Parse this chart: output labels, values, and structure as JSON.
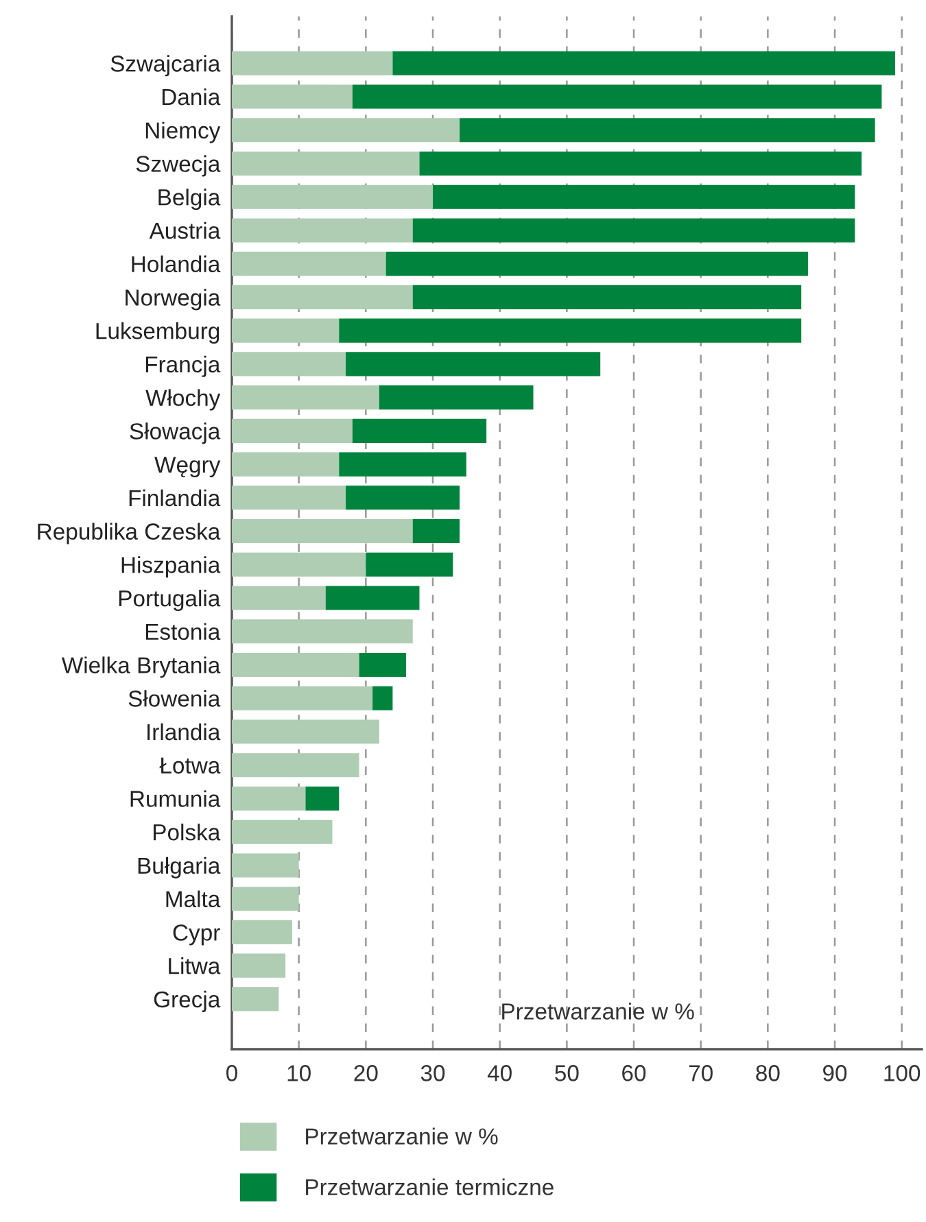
{
  "chart_data": {
    "type": "bar",
    "orientation": "horizontal",
    "stacked": true,
    "categories": [
      "Szwajcaria",
      "Dania",
      "Niemcy",
      "Szwecja",
      "Belgia",
      "Austria",
      "Holandia",
      "Norwegia",
      "Luksemburg",
      "Francja",
      "Włochy",
      "Słowacja",
      "Węgry",
      "Finlandia",
      "Republika Czeska",
      "Hiszpania",
      "Portugalia",
      "Estonia",
      "Wielka Brytania",
      "Słowenia",
      "Irlandia",
      "Łotwa",
      "Rumunia",
      "Polska",
      "Bułgaria",
      "Malta",
      "Cypr",
      "Litwa",
      "Grecja"
    ],
    "series": [
      {
        "name": "Przetwarzanie w %",
        "color": "#afcdb3",
        "values": [
          24,
          18,
          34,
          28,
          30,
          27,
          23,
          27,
          16,
          17,
          22,
          18,
          16,
          17,
          27,
          20,
          14,
          27,
          19,
          21,
          22,
          19,
          11,
          15,
          10,
          10,
          9,
          8,
          7
        ]
      },
      {
        "name": "Przetwarzanie termiczne",
        "color": "#00843d",
        "values": [
          75,
          79,
          62,
          66,
          63,
          66,
          63,
          58,
          69,
          38,
          23,
          20,
          19,
          17,
          7,
          13,
          14,
          0,
          7,
          3,
          0,
          0,
          5,
          0,
          0,
          0,
          0,
          0,
          0
        ]
      }
    ],
    "xlabel": "Przetwarzanie w %",
    "xlim": [
      0,
      103
    ],
    "xticks": [
      0,
      10,
      20,
      30,
      40,
      50,
      60,
      70,
      80,
      90,
      100
    ],
    "grid": "x",
    "legend": "bottom left"
  }
}
